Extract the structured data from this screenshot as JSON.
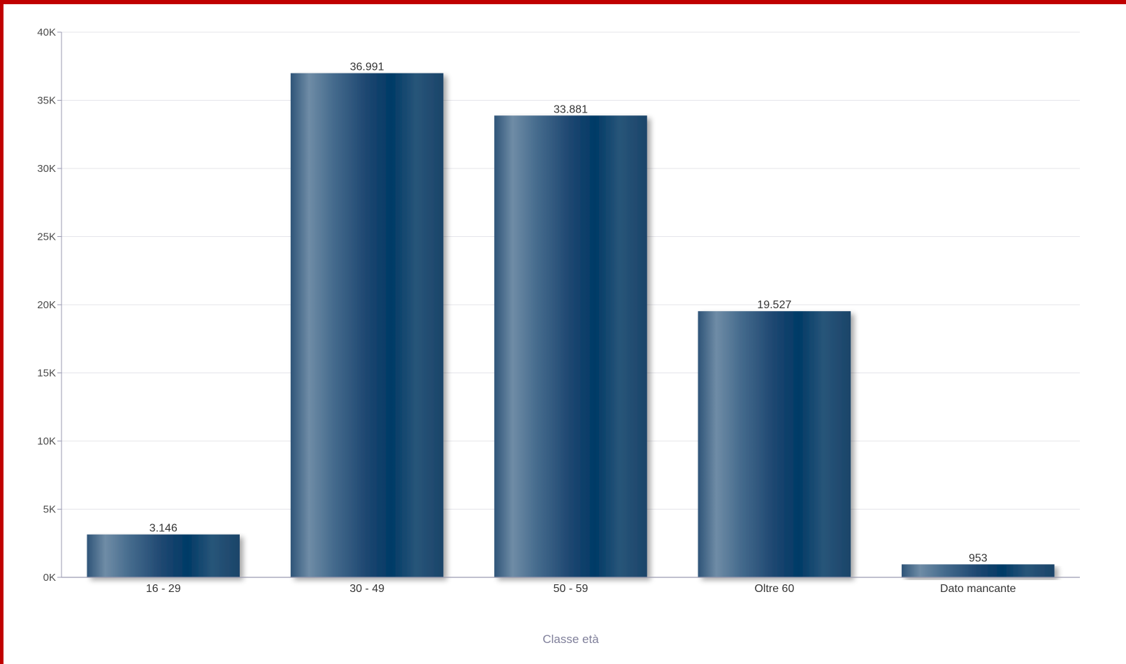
{
  "chart_data": {
    "type": "bar",
    "title": "",
    "xlabel": "Classe età",
    "ylabel": "",
    "ylim": [
      0,
      40000
    ],
    "yticks": [
      0,
      5000,
      10000,
      15000,
      20000,
      25000,
      30000,
      35000,
      40000
    ],
    "ytick_labels": [
      "0K",
      "5K",
      "10K",
      "15K",
      "20K",
      "25K",
      "30K",
      "35K",
      "40K"
    ],
    "categories": [
      "16 - 29",
      "30 - 49",
      "50 - 59",
      "Oltre 60",
      "Dato mancante"
    ],
    "values": [
      3146,
      36991,
      33881,
      19527,
      953
    ],
    "value_labels": [
      "3.146",
      "36.991",
      "33.881",
      "19.527",
      "953"
    ],
    "grid": true,
    "legend": "none",
    "colors": {
      "bar_dark": "#003a66",
      "bar_light": "#6f8ca6",
      "frame": "#c00000",
      "grid": "#e4e4ea",
      "axis": "#9a9ab0"
    }
  }
}
